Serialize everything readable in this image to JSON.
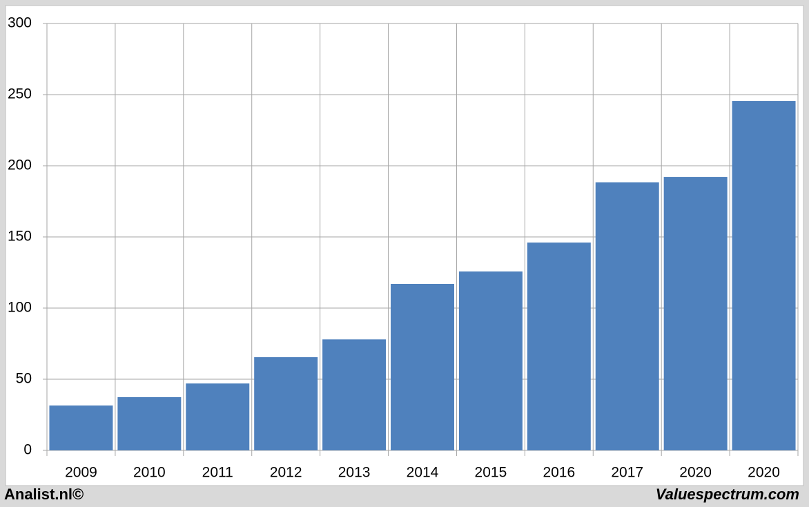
{
  "chart_data": {
    "type": "bar",
    "categories": [
      "2009",
      "2010",
      "2011",
      "2012",
      "2013",
      "2014",
      "2015",
      "2016",
      "2017",
      "2020",
      "2020"
    ],
    "values": [
      31.5,
      37.4,
      47,
      65.5,
      78,
      117,
      125.7,
      146,
      188.3,
      192.2,
      245.6
    ],
    "color": "#4f81bd",
    "ylim": [
      0,
      300
    ],
    "yticks": [
      0,
      50,
      100,
      150,
      200,
      250,
      300
    ],
    "grid": true
  },
  "footer": {
    "left": "Analist.nl©",
    "right": "Valuespectrum.com"
  }
}
